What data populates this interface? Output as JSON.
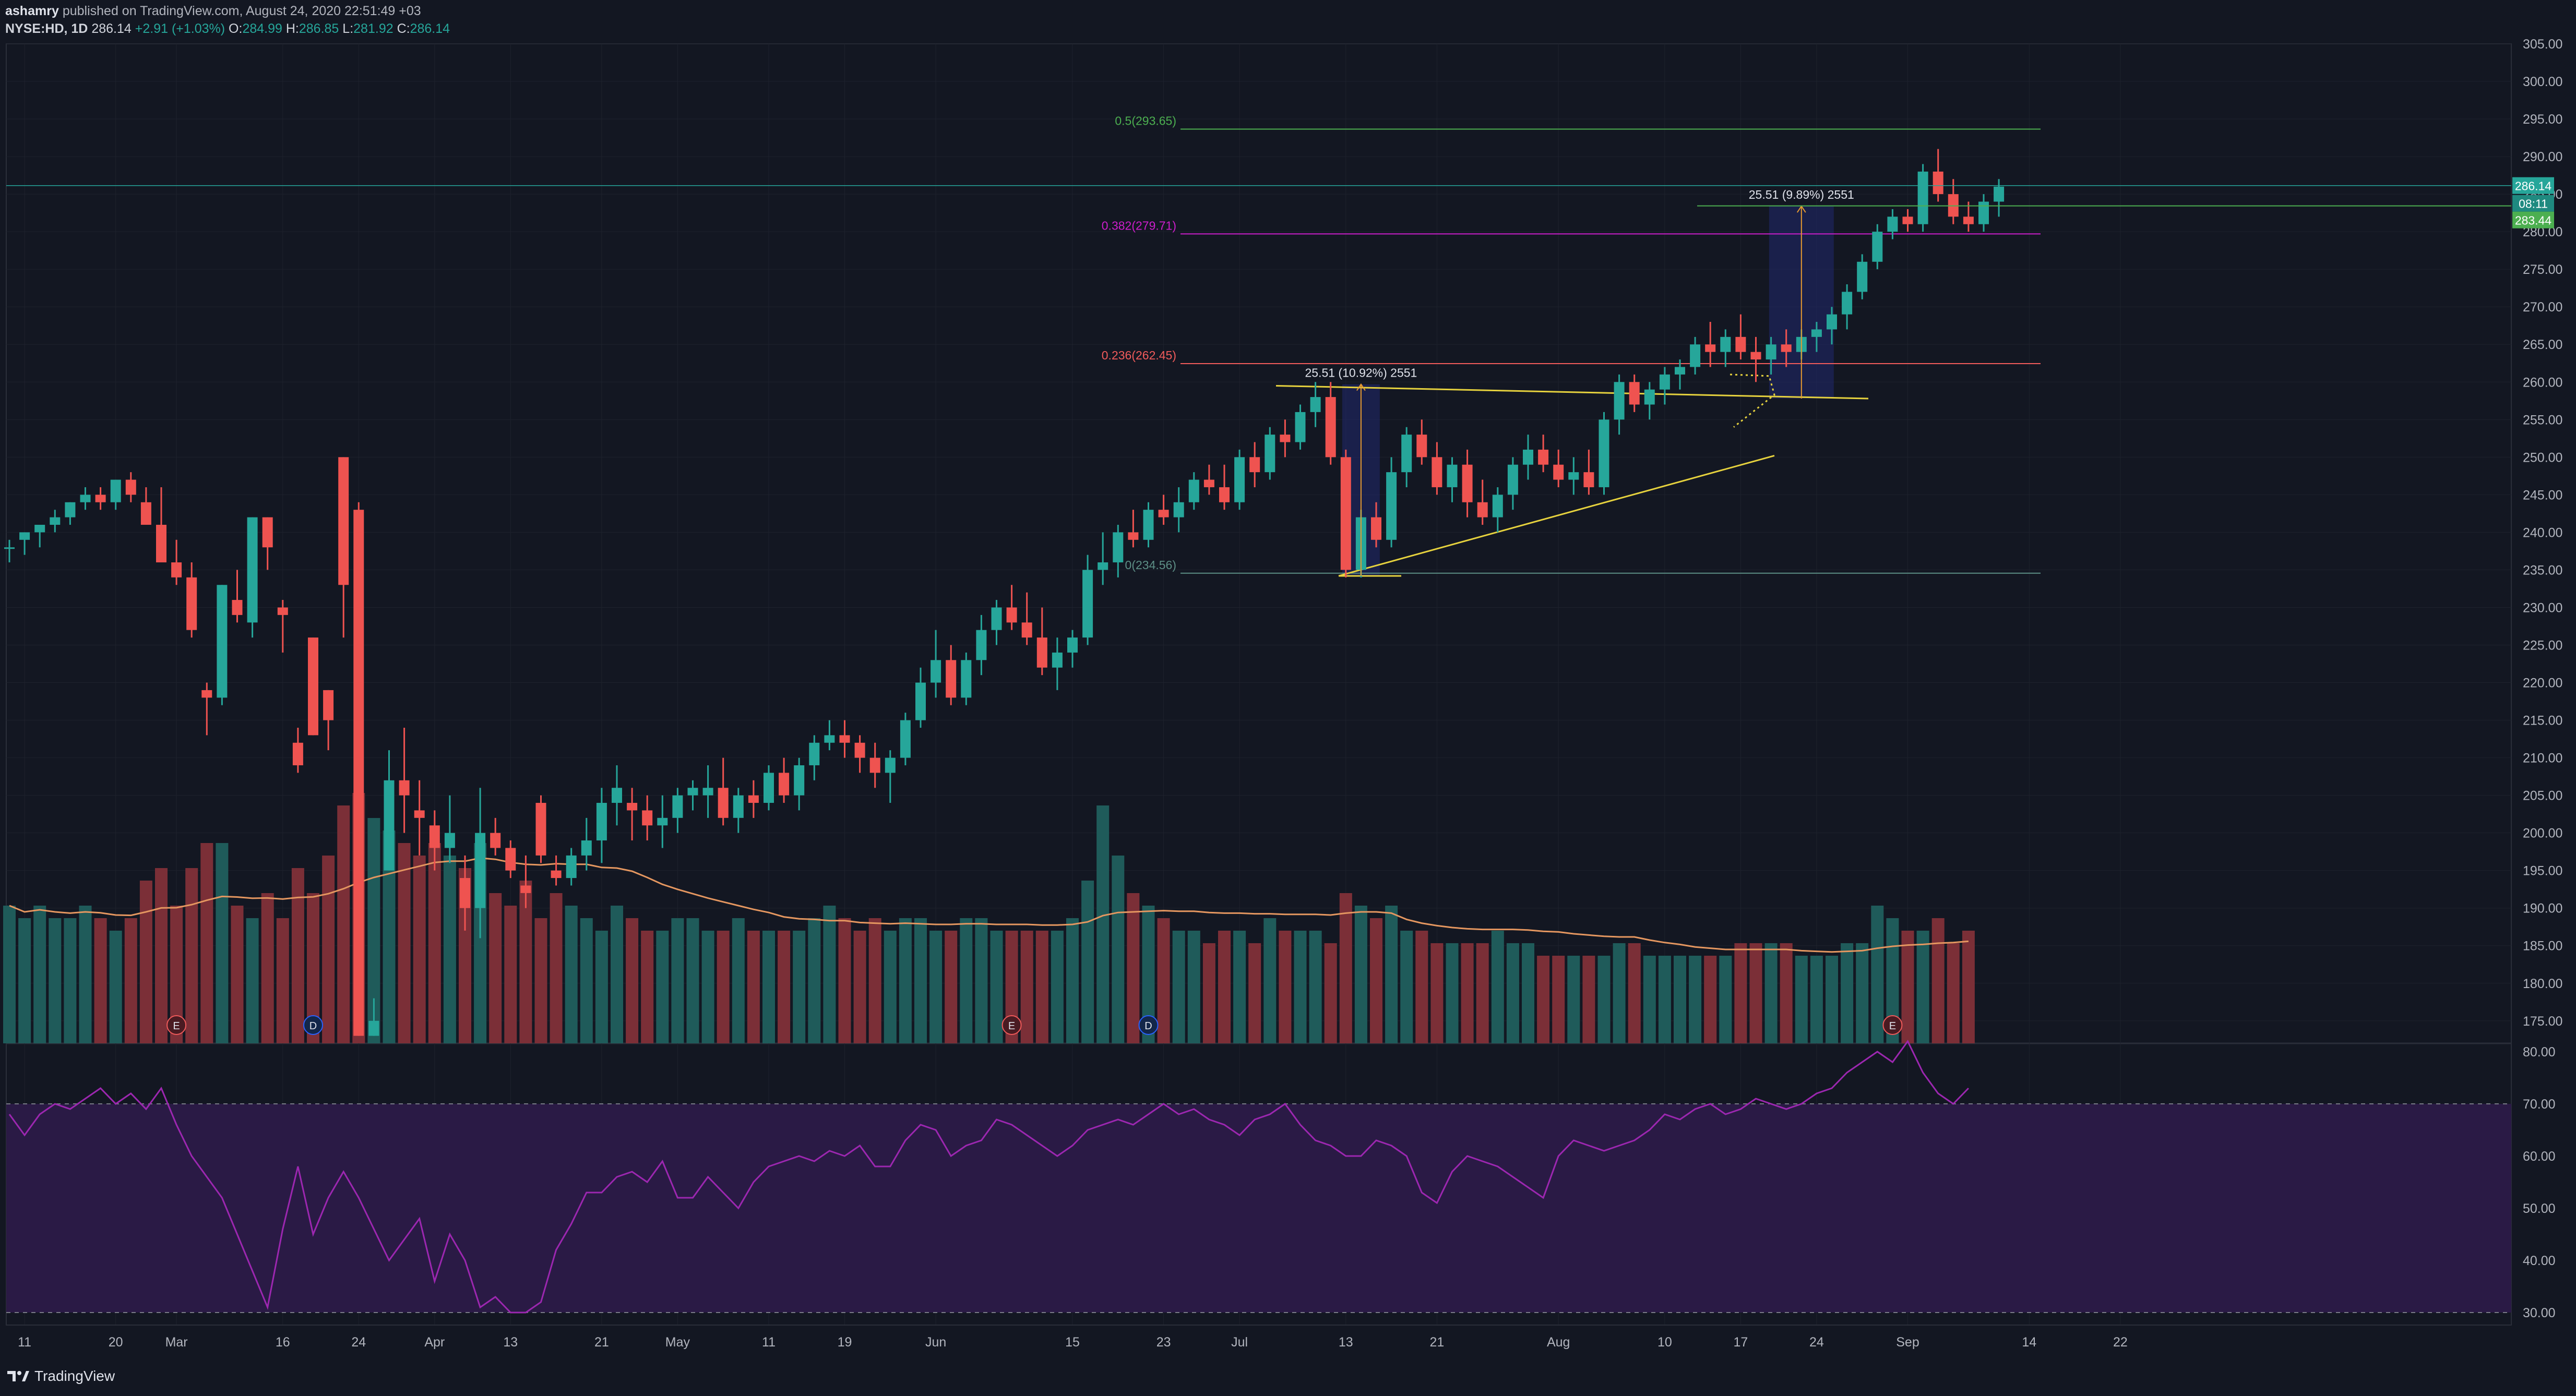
{
  "header": {
    "publisher": "ashamry",
    "published_text": "published on TradingView.com, August 24, 2020 22:51:49 +03",
    "symbol_timeframe": "NYSE:HD, 1D",
    "last": "286.14",
    "change": "+2.91 (+1.03%)",
    "o_label": "O:",
    "o_value": "284.99",
    "h_label": "H:",
    "h_value": "286.85",
    "l_label": "L:",
    "l_value": "281.92",
    "c_label": "C:",
    "c_value": "286.14"
  },
  "footer": {
    "brand": "TradingView"
  },
  "colors": {
    "background": "#131722",
    "up": "#26a69a",
    "down": "#ef5350",
    "volume_up": "#1f5b5a",
    "volume_down": "#7b2f37",
    "volume_ma": "#e59760",
    "rsi_line": "#9c27b0",
    "rsi_band": "#2a1a45",
    "fib_0": "#5d8f86",
    "fib_0236": "#f15b5b",
    "fib_0382": "#cc1ecb",
    "fib_05": "#4caf50",
    "trendline": "#e6d23e",
    "measure": "#e89b30",
    "grid": "#1e222d"
  },
  "chart_data": {
    "type": "candlestick",
    "symbol": "NYSE:HD",
    "timeframe": "1D",
    "ylim": [
      172,
      305
    ],
    "price_ticks": [
      175,
      180,
      185,
      190,
      195,
      200,
      205,
      210,
      215,
      220,
      225,
      230,
      235,
      240,
      245,
      250,
      255,
      260,
      265,
      270,
      275,
      280,
      285,
      290,
      295,
      300,
      305
    ],
    "x_ticks": [
      {
        "label": "11",
        "index": 1
      },
      {
        "label": "20",
        "index": 7
      },
      {
        "label": "Mar",
        "index": 11
      },
      {
        "label": "16",
        "index": 18
      },
      {
        "label": "24",
        "index": 23
      },
      {
        "label": "Apr",
        "index": 28
      },
      {
        "label": "13",
        "index": 33
      },
      {
        "label": "21",
        "index": 39
      },
      {
        "label": "May",
        "index": 44
      },
      {
        "label": "11",
        "index": 50
      },
      {
        "label": "19",
        "index": 55
      },
      {
        "label": "Jun",
        "index": 61
      },
      {
        "label": "15",
        "index": 70
      },
      {
        "label": "23",
        "index": 76
      },
      {
        "label": "Jul",
        "index": 81
      },
      {
        "label": "13",
        "index": 88
      },
      {
        "label": "21",
        "index": 94
      },
      {
        "label": "Aug",
        "index": 102
      },
      {
        "label": "10",
        "index": 109
      },
      {
        "label": "17",
        "index": 114
      },
      {
        "label": "24",
        "index": 119
      },
      {
        "label": "Sep",
        "index": 125
      },
      {
        "label": "14",
        "index": 133
      },
      {
        "label": "22",
        "index": 139
      }
    ],
    "candles": [
      [
        238,
        239,
        236,
        238
      ],
      [
        239,
        240,
        237,
        240
      ],
      [
        240,
        241,
        238,
        241
      ],
      [
        241,
        243,
        240,
        242
      ],
      [
        242,
        244,
        241,
        244
      ],
      [
        244,
        246,
        243,
        245
      ],
      [
        245,
        246,
        243,
        244
      ],
      [
        244,
        247,
        243,
        247
      ],
      [
        247,
        248,
        244,
        245
      ],
      [
        244,
        246,
        241,
        241
      ],
      [
        241,
        246,
        236,
        236
      ],
      [
        236,
        239,
        233,
        234
      ],
      [
        234,
        236,
        226,
        227
      ],
      [
        219,
        220,
        213,
        218
      ],
      [
        218,
        233,
        217,
        233
      ],
      [
        231,
        235,
        228,
        229
      ],
      [
        228,
        242,
        226,
        242
      ],
      [
        242,
        242,
        235,
        238
      ],
      [
        230,
        231,
        224,
        229
      ],
      [
        212,
        214,
        208,
        209
      ],
      [
        226,
        226,
        213,
        213
      ],
      [
        219,
        219,
        211,
        215
      ],
      [
        250,
        250,
        226,
        233
      ],
      [
        243,
        244,
        173,
        173
      ],
      [
        173,
        178,
        173,
        175
      ],
      [
        195,
        211,
        195,
        207
      ],
      [
        207,
        214,
        200,
        205
      ],
      [
        203,
        207,
        197,
        202
      ],
      [
        201,
        203,
        195,
        198
      ],
      [
        198,
        205,
        196,
        200
      ],
      [
        194,
        197,
        187,
        190
      ],
      [
        190,
        206,
        186,
        200
      ],
      [
        200,
        202,
        197,
        198
      ],
      [
        198,
        199,
        194,
        195
      ],
      [
        193,
        197,
        190,
        192
      ],
      [
        204,
        205,
        196,
        197
      ],
      [
        195,
        197,
        193,
        194
      ],
      [
        194,
        198,
        193,
        197
      ],
      [
        197,
        202,
        195,
        199
      ],
      [
        199,
        206,
        196,
        204
      ],
      [
        204,
        209,
        201,
        206
      ],
      [
        204,
        206,
        199,
        203
      ],
      [
        203,
        205,
        199,
        201
      ],
      [
        201,
        205,
        198,
        202
      ],
      [
        202,
        206,
        200,
        205
      ],
      [
        205,
        207,
        203,
        206
      ],
      [
        205,
        209,
        202,
        206
      ],
      [
        206,
        210,
        201,
        202
      ],
      [
        202,
        206,
        200,
        205
      ],
      [
        205,
        207,
        202,
        204
      ],
      [
        204,
        209,
        203,
        208
      ],
      [
        208,
        210,
        204,
        205
      ],
      [
        205,
        210,
        203,
        209
      ],
      [
        209,
        213,
        207,
        212
      ],
      [
        212,
        215,
        211,
        213
      ],
      [
        213,
        215,
        210,
        212
      ],
      [
        212,
        213,
        208,
        210
      ],
      [
        210,
        212,
        206,
        208
      ],
      [
        208,
        211,
        204,
        210
      ],
      [
        210,
        216,
        209,
        215
      ],
      [
        215,
        222,
        214,
        220
      ],
      [
        220,
        227,
        218,
        223
      ],
      [
        223,
        225,
        217,
        218
      ],
      [
        218,
        224,
        217,
        223
      ],
      [
        223,
        229,
        221,
        227
      ],
      [
        227,
        231,
        225,
        230
      ],
      [
        230,
        233,
        227,
        228
      ],
      [
        228,
        232,
        225,
        226
      ],
      [
        226,
        230,
        221,
        222
      ],
      [
        222,
        226,
        219,
        224
      ],
      [
        224,
        227,
        222,
        226
      ],
      [
        226,
        237,
        225,
        235
      ],
      [
        235,
        240,
        233,
        236
      ],
      [
        236,
        241,
        234,
        240
      ],
      [
        240,
        243,
        238,
        239
      ],
      [
        239,
        244,
        238,
        243
      ],
      [
        243,
        245,
        241,
        242
      ],
      [
        242,
        246,
        240,
        244
      ],
      [
        244,
        248,
        243,
        247
      ],
      [
        247,
        249,
        245,
        246
      ],
      [
        246,
        249,
        243,
        244
      ],
      [
        244,
        251,
        243,
        250
      ],
      [
        250,
        252,
        246,
        248
      ],
      [
        248,
        254,
        247,
        253
      ],
      [
        253,
        255,
        250,
        252
      ],
      [
        252,
        257,
        251,
        256
      ],
      [
        256,
        260,
        254,
        258
      ],
      [
        258,
        260,
        249,
        250
      ],
      [
        250,
        251,
        234,
        235
      ],
      [
        235,
        243,
        234,
        242
      ],
      [
        242,
        244,
        238,
        239
      ],
      [
        239,
        250,
        238,
        248
      ],
      [
        248,
        254,
        246,
        253
      ],
      [
        253,
        255,
        249,
        250
      ],
      [
        250,
        252,
        245,
        246
      ],
      [
        246,
        250,
        244,
        249
      ],
      [
        249,
        251,
        242,
        244
      ],
      [
        244,
        247,
        241,
        242
      ],
      [
        242,
        246,
        240,
        245
      ],
      [
        245,
        250,
        243,
        249
      ],
      [
        249,
        253,
        247,
        251
      ],
      [
        251,
        253,
        248,
        249
      ],
      [
        249,
        251,
        246,
        247
      ],
      [
        247,
        250,
        245,
        248
      ],
      [
        248,
        251,
        245,
        246
      ],
      [
        246,
        256,
        245,
        255
      ],
      [
        255,
        261,
        253,
        260
      ],
      [
        260,
        261,
        256,
        257
      ],
      [
        257,
        260,
        255,
        259
      ],
      [
        259,
        262,
        257,
        261
      ],
      [
        261,
        263,
        259,
        262
      ],
      [
        262,
        266,
        261,
        265
      ],
      [
        265,
        268,
        262,
        264
      ],
      [
        264,
        267,
        262,
        266
      ],
      [
        266,
        269,
        263,
        264
      ],
      [
        264,
        266,
        260,
        263
      ],
      [
        263,
        266,
        261,
        265
      ],
      [
        265,
        267,
        262,
        264
      ],
      [
        264,
        267,
        263,
        266
      ],
      [
        266,
        268,
        264,
        267
      ],
      [
        267,
        270,
        265,
        269
      ],
      [
        269,
        273,
        267,
        272
      ],
      [
        272,
        277,
        271,
        276
      ],
      [
        276,
        281,
        275,
        280
      ],
      [
        280,
        283,
        279,
        282
      ],
      [
        282,
        283,
        280,
        281
      ],
      [
        281,
        289,
        280,
        288
      ],
      [
        288,
        291,
        284,
        285
      ],
      [
        285,
        287,
        281,
        282
      ],
      [
        282,
        284,
        280,
        281
      ],
      [
        281,
        285,
        280,
        284
      ],
      [
        284,
        287,
        282,
        286
      ]
    ],
    "volume_relative": [
      0.55,
      0.5,
      0.55,
      0.5,
      0.5,
      0.55,
      0.5,
      0.45,
      0.5,
      0.65,
      0.7,
      0.55,
      0.7,
      0.8,
      0.8,
      0.55,
      0.5,
      0.6,
      0.5,
      0.7,
      0.6,
      0.75,
      0.95,
      1.0,
      0.9,
      0.85,
      0.8,
      0.75,
      0.8,
      0.75,
      0.7,
      0.8,
      0.6,
      0.55,
      0.65,
      0.5,
      0.6,
      0.55,
      0.5,
      0.45,
      0.55,
      0.5,
      0.45,
      0.45,
      0.5,
      0.5,
      0.45,
      0.45,
      0.5,
      0.45,
      0.45,
      0.45,
      0.45,
      0.5,
      0.55,
      0.5,
      0.45,
      0.5,
      0.45,
      0.5,
      0.5,
      0.45,
      0.45,
      0.5,
      0.5,
      0.45,
      0.45,
      0.45,
      0.45,
      0.45,
      0.5,
      0.65,
      0.95,
      0.75,
      0.6,
      0.55,
      0.5,
      0.45,
      0.45,
      0.4,
      0.45,
      0.45,
      0.4,
      0.5,
      0.45,
      0.45,
      0.45,
      0.4,
      0.6,
      0.55,
      0.5,
      0.55,
      0.45,
      0.45,
      0.4,
      0.4,
      0.4,
      0.4,
      0.45,
      0.4,
      0.4,
      0.35,
      0.35,
      0.35,
      0.35,
      0.35,
      0.4,
      0.4,
      0.35,
      0.35,
      0.35,
      0.35,
      0.35,
      0.35,
      0.4,
      0.4,
      0.4,
      0.4,
      0.35,
      0.35,
      0.35,
      0.4,
      0.4,
      0.55,
      0.5,
      0.45,
      0.45,
      0.5,
      0.4,
      0.45
    ],
    "rsi_ticks": [
      30,
      40,
      50,
      60,
      70,
      80
    ],
    "rsi_band": [
      30,
      70
    ],
    "rsi": [
      68,
      64,
      68,
      70,
      69,
      71,
      73,
      70,
      72,
      69,
      73,
      66,
      60,
      56,
      52,
      45,
      38,
      31,
      46,
      58,
      45,
      52,
      57,
      52,
      46,
      40,
      44,
      48,
      36,
      45,
      40,
      31,
      33,
      30,
      30,
      32,
      42,
      47,
      53,
      53,
      56,
      57,
      55,
      59,
      52,
      52,
      56,
      53,
      50,
      55,
      58,
      59,
      60,
      59,
      61,
      60,
      62,
      58,
      58,
      63,
      66,
      65,
      60,
      62,
      63,
      67,
      66,
      64,
      62,
      60,
      62,
      65,
      66,
      67,
      66,
      68,
      70,
      68,
      69,
      67,
      66,
      64,
      67,
      68,
      70,
      66,
      63,
      62,
      60,
      60,
      63,
      62,
      60,
      53,
      51,
      57,
      60,
      59,
      58,
      56,
      54,
      52,
      60,
      63,
      62,
      61,
      62,
      63,
      65,
      68,
      67,
      69,
      70,
      68,
      69,
      71,
      70,
      69,
      70,
      72,
      73,
      76,
      78,
      80,
      78,
      82,
      76,
      72,
      70,
      73
    ],
    "fib_levels": [
      {
        "label": "0.5(293.65)",
        "price": 293.65
      },
      {
        "label": "0.382(279.71)",
        "price": 279.71
      },
      {
        "label": "0.236(262.45)",
        "price": 262.45
      },
      {
        "label": "0(234.56)",
        "price": 234.56
      }
    ],
    "measurements": [
      {
        "label": "25.51 (10.92%) 2551",
        "from": 234.2,
        "to": 259.7
      },
      {
        "label": "25.51 (9.89%) 2551",
        "from": 257.8,
        "to": 283.4
      }
    ],
    "price_labels": [
      {
        "label": "286.14",
        "price": 286.14
      },
      {
        "label": "08:11",
        "price": 283.9
      },
      {
        "label": "283.44",
        "price": 283.44
      }
    ],
    "earnings_markers": [
      "E",
      "D",
      "E",
      "D",
      "E"
    ]
  }
}
